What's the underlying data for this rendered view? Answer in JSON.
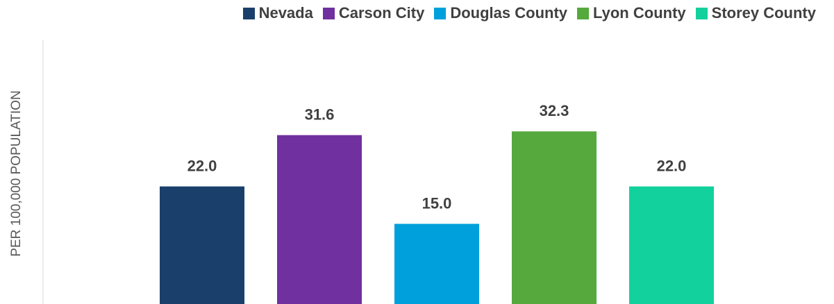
{
  "chart_data": {
    "type": "bar",
    "y_label": "PER 100,000 POPULATION",
    "ylim": [
      0,
      50
    ],
    "series": [
      {
        "name": "Nevada",
        "color": "#1a3f6b",
        "values": [
          22.0
        ],
        "value_labels": [
          "22.0"
        ]
      },
      {
        "name": "Carson City",
        "color": "#7030a0",
        "values": [
          31.6
        ],
        "value_labels": [
          "31.6"
        ]
      },
      {
        "name": "Douglas County",
        "color": "#00a0dc",
        "values": [
          15.0
        ],
        "value_labels": [
          "15.0"
        ]
      },
      {
        "name": "Lyon County",
        "color": "#56a93c",
        "values": [
          32.3
        ],
        "value_labels": [
          "32.3"
        ]
      },
      {
        "name": "Storey County",
        "color": "#13d19c",
        "values": [
          22.0
        ],
        "value_labels": [
          "22.0"
        ]
      }
    ]
  }
}
